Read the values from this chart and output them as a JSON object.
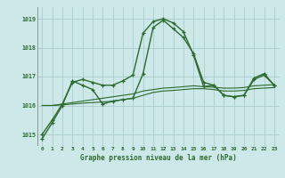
{
  "title": "Graphe pression niveau de la mer (hPa)",
  "background_color": "#cce8e8",
  "grid_color": "#aacccc",
  "line_color": "#2d6a2d",
  "xlim": [
    -0.5,
    23.5
  ],
  "ylim": [
    1014.6,
    1019.4
  ],
  "yticks": [
    1015,
    1016,
    1017,
    1018,
    1019
  ],
  "xticks": [
    0,
    1,
    2,
    3,
    4,
    5,
    6,
    7,
    8,
    9,
    10,
    11,
    12,
    13,
    14,
    15,
    16,
    17,
    18,
    19,
    20,
    21,
    22,
    23
  ],
  "series_main": [
    1014.85,
    1015.4,
    1016.0,
    1016.85,
    1016.7,
    1016.55,
    1016.05,
    1016.15,
    1016.2,
    1016.25,
    1017.1,
    1018.7,
    1018.95,
    1018.65,
    1018.35,
    1017.8,
    1016.8,
    1016.7,
    1016.35,
    1016.3,
    1016.35,
    1016.9,
    1017.05,
    1016.7
  ],
  "series_upper": [
    1015.0,
    1015.5,
    1016.05,
    1016.8,
    1016.9,
    1016.8,
    1016.7,
    1016.7,
    1016.85,
    1017.05,
    1018.5,
    1018.9,
    1019.0,
    1018.85,
    1018.55,
    1017.75,
    1016.65,
    1016.7,
    1016.35,
    1016.3,
    1016.35,
    1016.95,
    1017.1,
    1016.7
  ],
  "series_lower1": [
    1016.0,
    1016.0,
    1016.05,
    1016.1,
    1016.15,
    1016.2,
    1016.25,
    1016.3,
    1016.35,
    1016.4,
    1016.5,
    1016.55,
    1016.6,
    1016.62,
    1016.65,
    1016.68,
    1016.65,
    1016.63,
    1016.6,
    1016.6,
    1016.62,
    1016.68,
    1016.7,
    1016.72
  ],
  "series_lower2": [
    1016.0,
    1016.0,
    1016.02,
    1016.05,
    1016.08,
    1016.1,
    1016.12,
    1016.15,
    1016.2,
    1016.25,
    1016.35,
    1016.45,
    1016.5,
    1016.52,
    1016.55,
    1016.58,
    1016.58,
    1016.55,
    1016.5,
    1016.5,
    1016.52,
    1016.58,
    1016.6,
    1016.62
  ]
}
